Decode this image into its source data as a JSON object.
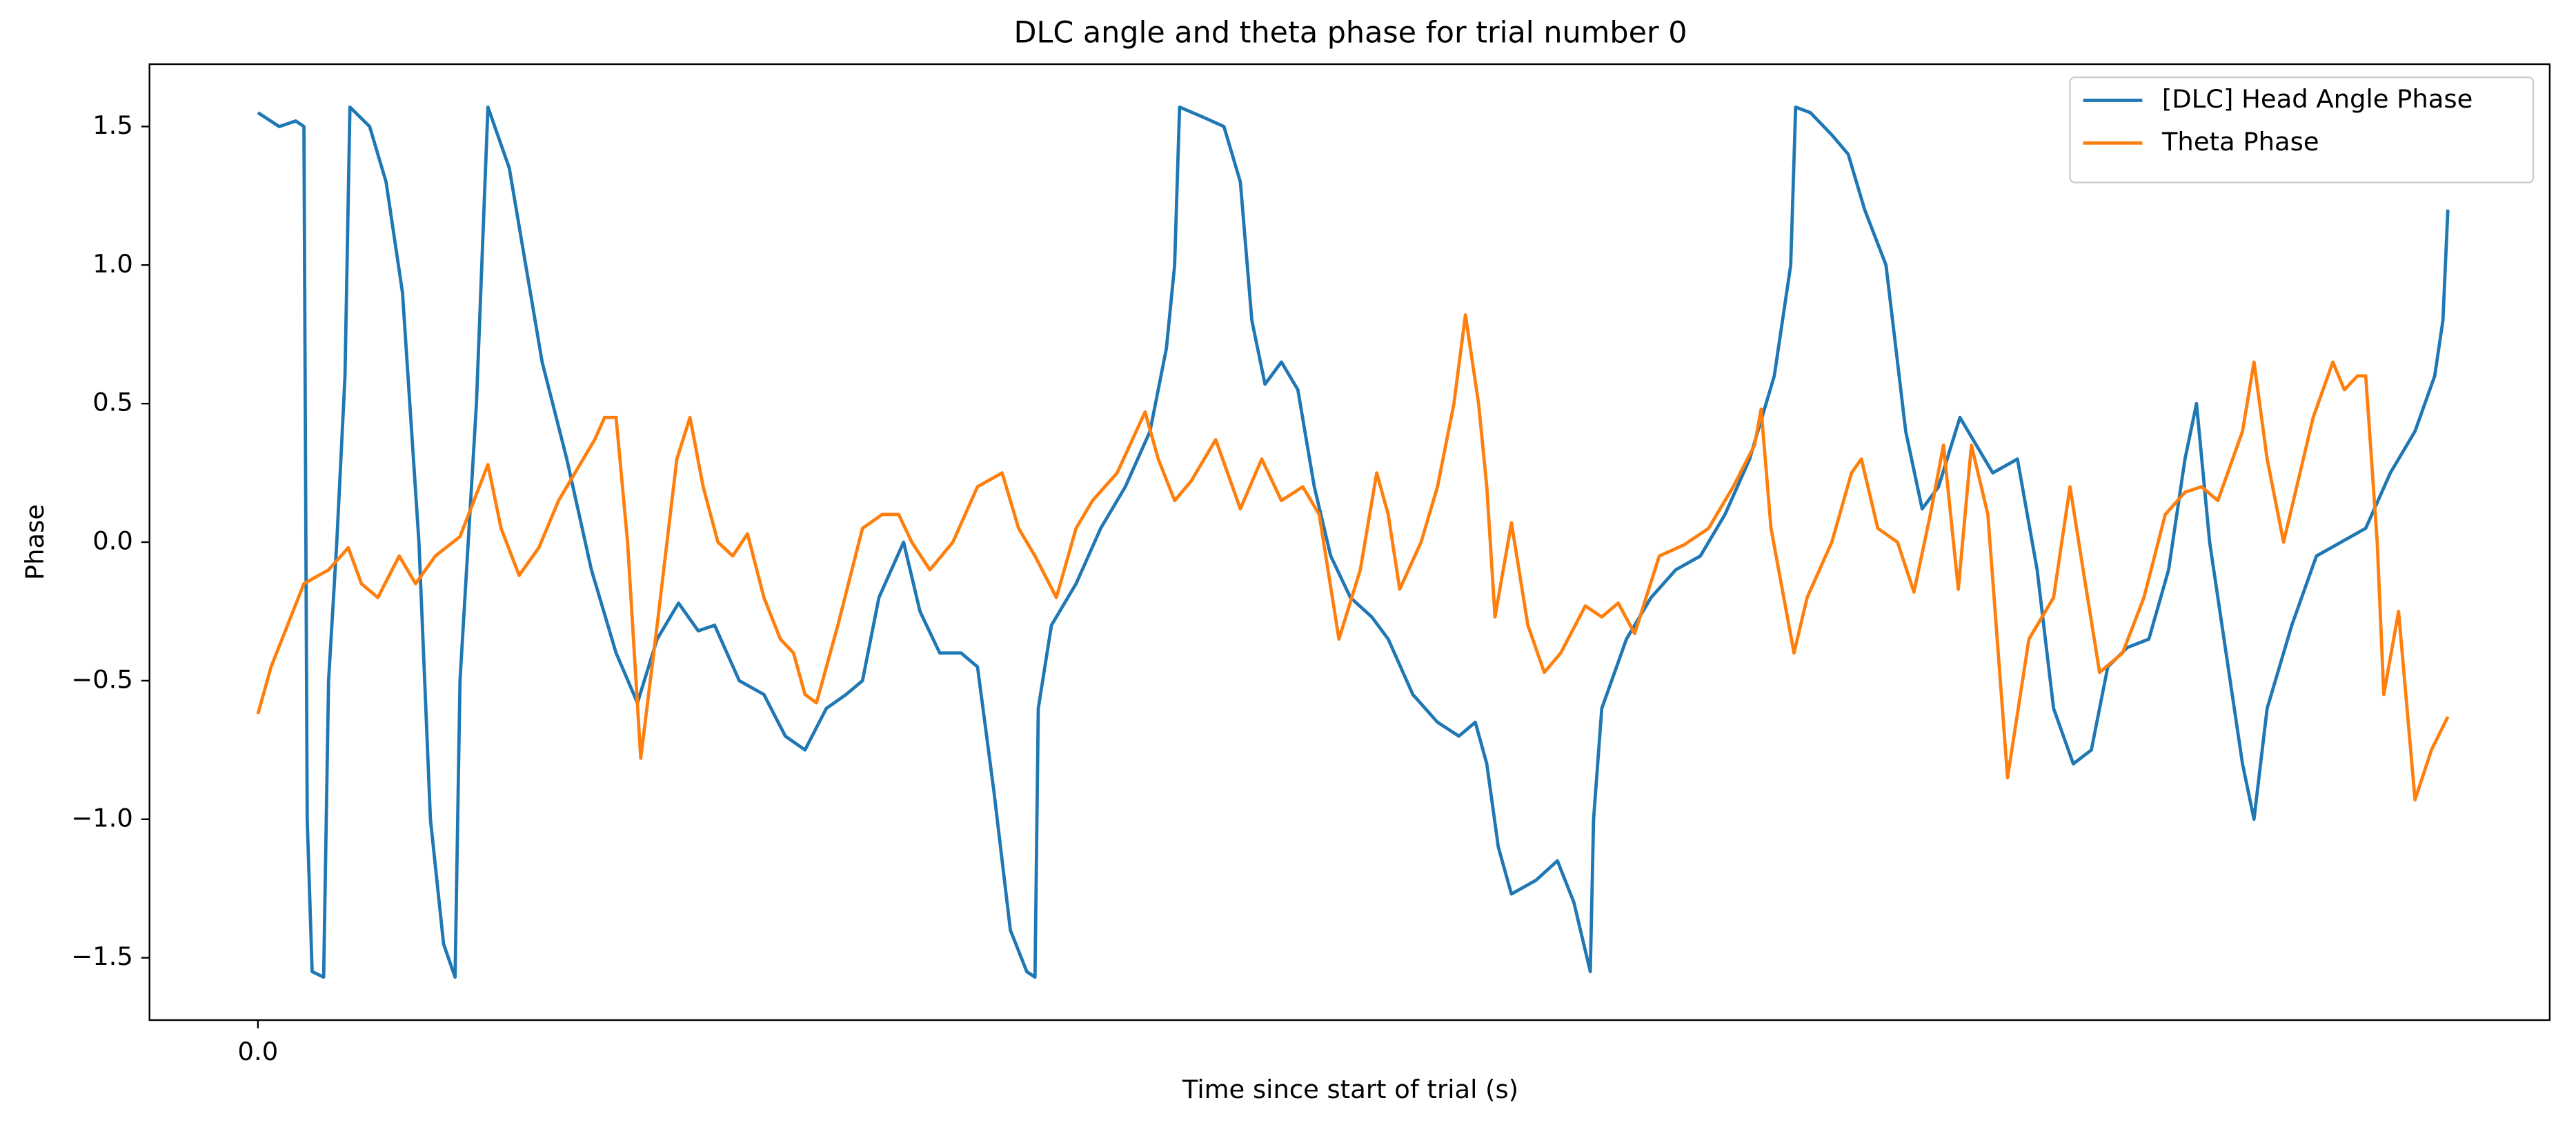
{
  "chart_data": {
    "type": "line",
    "title": "DLC angle and theta phase for trial number 0",
    "xlabel": "Time since start of trial (s)",
    "ylabel": "Phase",
    "xlim": [
      -0.066,
      1.395
    ],
    "ylim": [
      -1.725,
      1.725
    ],
    "xticks": [
      {
        "value": 0,
        "label": "0.0"
      }
    ],
    "yticks": [
      {
        "value": -1.5,
        "label": "−1.5"
      },
      {
        "value": -1.0,
        "label": "−1.0"
      },
      {
        "value": -0.5,
        "label": "−0.5"
      },
      {
        "value": 0,
        "label": "0.0"
      },
      0.5,
      {
        "value": 1.0,
        "label": "1.0"
      },
      1.5
    ],
    "grid": false,
    "legend": "upper right",
    "series": [
      {
        "name": "[DLC] Head Angle Phase",
        "color": "#1f77b4",
        "x": [
          0,
          0.013,
          0.023,
          0.028,
          0.03,
          0.033,
          0.04,
          0.043,
          0.048,
          0.053,
          0.056,
          0.068,
          0.078,
          0.088,
          0.098,
          0.105,
          0.113,
          0.12,
          0.123,
          0.133,
          0.14,
          0.153,
          0.163,
          0.173,
          0.188,
          0.203,
          0.218,
          0.231,
          0.243,
          0.256,
          0.268,
          0.278,
          0.293,
          0.308,
          0.321,
          0.333,
          0.346,
          0.358,
          0.368,
          0.378,
          0.393,
          0.403,
          0.415,
          0.428,
          0.438,
          0.448,
          0.458,
          0.468,
          0.473,
          0.475,
          0.483,
          0.498,
          0.513,
          0.528,
          0.543,
          0.553,
          0.558,
          0.561,
          0.573,
          0.588,
          0.598,
          0.605,
          0.613,
          0.623,
          0.633,
          0.643,
          0.653,
          0.665,
          0.678,
          0.688,
          0.703,
          0.718,
          0.731,
          0.741,
          0.748,
          0.755,
          0.763,
          0.778,
          0.791,
          0.801,
          0.811,
          0.813,
          0.818,
          0.833,
          0.848,
          0.863,
          0.878,
          0.893,
          0.908,
          0.923,
          0.933,
          0.936,
          0.945,
          0.958,
          0.968,
          0.978,
          0.991,
          1.003,
          1.013,
          1.023,
          1.036,
          1.046,
          1.056,
          1.071,
          1.083,
          1.093,
          1.105,
          1.116,
          1.126,
          1.138,
          1.151,
          1.163,
          1.173,
          1.18,
          1.188,
          1.198,
          1.208,
          1.215,
          1.223,
          1.238,
          1.253,
          1.268,
          1.283,
          1.298,
          1.313,
          1.325,
          1.33,
          1.333
        ],
        "values": [
          1.55,
          1.5,
          1.52,
          1.5,
          -1.0,
          -1.55,
          -1.57,
          -0.5,
          0.0,
          0.6,
          1.57,
          1.5,
          1.3,
          0.9,
          0.0,
          -1.0,
          -1.45,
          -1.57,
          -0.5,
          0.5,
          1.57,
          1.35,
          1.0,
          0.65,
          0.3,
          -0.1,
          -0.4,
          -0.58,
          -0.35,
          -0.22,
          -0.32,
          -0.3,
          -0.5,
          -0.55,
          -0.7,
          -0.75,
          -0.6,
          -0.55,
          -0.5,
          -0.2,
          0.0,
          -0.25,
          -0.4,
          -0.4,
          -0.45,
          -0.9,
          -1.4,
          -1.55,
          -1.57,
          -0.6,
          -0.3,
          -0.15,
          0.05,
          0.2,
          0.4,
          0.7,
          1.0,
          1.57,
          1.54,
          1.5,
          1.3,
          0.8,
          0.57,
          0.65,
          0.55,
          0.2,
          -0.05,
          -0.2,
          -0.27,
          -0.35,
          -0.55,
          -0.65,
          -0.7,
          -0.65,
          -0.8,
          -1.1,
          -1.27,
          -1.22,
          -1.15,
          -1.3,
          -1.55,
          -1.0,
          -0.6,
          -0.35,
          -0.2,
          -0.1,
          -0.05,
          0.1,
          0.3,
          0.6,
          1.0,
          1.57,
          1.55,
          1.47,
          1.4,
          1.2,
          1.0,
          0.4,
          0.12,
          0.2,
          0.45,
          0.35,
          0.25,
          0.3,
          -0.1,
          -0.6,
          -0.8,
          -0.75,
          -0.45,
          -0.38,
          -0.35,
          -0.1,
          0.3,
          0.5,
          0.0,
          -0.4,
          -0.8,
          -1.0,
          -0.6,
          -0.3,
          -0.05,
          0.0,
          0.05,
          0.25,
          0.4,
          0.6,
          0.8,
          1.2
        ]
      },
      {
        "name": "Theta Phase",
        "color": "#ff7f0e",
        "x": [
          0,
          0.008,
          0.018,
          0.028,
          0.043,
          0.055,
          0.063,
          0.073,
          0.086,
          0.096,
          0.108,
          0.123,
          0.14,
          0.148,
          0.159,
          0.171,
          0.183,
          0.198,
          0.205,
          0.211,
          0.218,
          0.225,
          0.233,
          0.243,
          0.255,
          0.263,
          0.271,
          0.28,
          0.289,
          0.298,
          0.308,
          0.318,
          0.326,
          0.333,
          0.34,
          0.353,
          0.368,
          0.38,
          0.39,
          0.398,
          0.409,
          0.423,
          0.438,
          0.453,
          0.463,
          0.473,
          0.486,
          0.498,
          0.508,
          0.523,
          0.54,
          0.548,
          0.558,
          0.568,
          0.583,
          0.598,
          0.611,
          0.623,
          0.636,
          0.646,
          0.658,
          0.671,
          0.681,
          0.688,
          0.695,
          0.708,
          0.718,
          0.728,
          0.735,
          0.743,
          0.748,
          0.753,
          0.763,
          0.773,
          0.783,
          0.793,
          0.808,
          0.818,
          0.828,
          0.838,
          0.853,
          0.868,
          0.883,
          0.898,
          0.911,
          0.915,
          0.921,
          0.935,
          0.943,
          0.958,
          0.97,
          0.976,
          0.986,
          0.998,
          1.008,
          1.018,
          1.026,
          1.035,
          1.043,
          1.053,
          1.065,
          1.078,
          1.093,
          1.103,
          1.111,
          1.121,
          1.135,
          1.148,
          1.161,
          1.173,
          1.183,
          1.193,
          1.208,
          1.215,
          1.223,
          1.233,
          1.243,
          1.251,
          1.263,
          1.27,
          1.278,
          1.283,
          1.29,
          1.294,
          1.303,
          1.313,
          1.323,
          1.333
        ],
        "values": [
          -0.62,
          -0.45,
          -0.3,
          -0.15,
          -0.1,
          -0.02,
          -0.15,
          -0.2,
          -0.05,
          -0.15,
          -0.05,
          0.02,
          0.28,
          0.05,
          -0.12,
          -0.02,
          0.15,
          0.3,
          0.37,
          0.45,
          0.45,
          0.0,
          -0.78,
          -0.3,
          0.3,
          0.45,
          0.2,
          0.0,
          -0.05,
          0.03,
          -0.2,
          -0.35,
          -0.4,
          -0.55,
          -0.58,
          -0.3,
          0.05,
          0.1,
          0.1,
          0.0,
          -0.1,
          0.0,
          0.2,
          0.25,
          0.05,
          -0.05,
          -0.2,
          0.05,
          0.15,
          0.25,
          0.47,
          0.3,
          0.15,
          0.22,
          0.37,
          0.12,
          0.3,
          0.15,
          0.2,
          0.1,
          -0.35,
          -0.1,
          0.25,
          0.1,
          -0.17,
          0.0,
          0.2,
          0.5,
          0.82,
          0.5,
          0.2,
          -0.27,
          0.07,
          -0.3,
          -0.47,
          -0.4,
          -0.23,
          -0.27,
          -0.22,
          -0.33,
          -0.05,
          -0.01,
          0.05,
          0.2,
          0.35,
          0.48,
          0.05,
          -0.4,
          -0.2,
          0.0,
          0.25,
          0.3,
          0.05,
          0.0,
          -0.18,
          0.1,
          0.35,
          -0.17,
          0.35,
          0.1,
          -0.85,
          -0.35,
          -0.2,
          0.2,
          -0.1,
          -0.47,
          -0.4,
          -0.2,
          0.1,
          0.18,
          0.2,
          0.15,
          0.4,
          0.65,
          0.3,
          0.0,
          0.25,
          0.45,
          0.65,
          0.55,
          0.6,
          0.6,
          0.0,
          -0.55,
          -0.25,
          -0.93,
          -0.75,
          -0.63
        ]
      }
    ]
  }
}
